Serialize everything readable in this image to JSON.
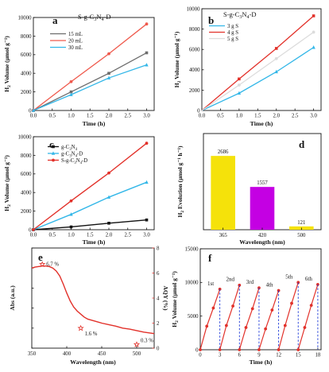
{
  "chart_data": [
    {
      "panel": "a",
      "type": "line",
      "title": "S-g-C3N4-D",
      "xlabel": "Time (h)",
      "ylabel": "H2 Volume (μmol g⁻¹)",
      "xlim": [
        0,
        3.2
      ],
      "ylim": [
        0,
        10000
      ],
      "xticks": [
        "0.0",
        "0.5",
        "1.0",
        "1.5",
        "2.0",
        "2.5",
        "3.0"
      ],
      "yticks": [
        "0",
        "2000",
        "4000",
        "6000",
        "8000",
        "10000"
      ],
      "legend_position": "top-left",
      "series": [
        {
          "name": "15 mL",
          "color": "#6d6d6d",
          "x": [
            0,
            1,
            2,
            3
          ],
          "y": [
            0,
            2000,
            4000,
            6200
          ]
        },
        {
          "name": "20 mL",
          "color": "#ef5a4d",
          "x": [
            0,
            1,
            2,
            3
          ],
          "y": [
            0,
            3100,
            6100,
            9300
          ]
        },
        {
          "name": "30 mL",
          "color": "#33b7e8",
          "x": [
            0,
            1,
            2,
            3
          ],
          "y": [
            0,
            1700,
            3500,
            4900
          ]
        }
      ]
    },
    {
      "panel": "b",
      "type": "line",
      "title": "S-g-C3N4-D",
      "xlabel": "Time (h)",
      "ylabel": "H2 Volume (μmol g⁻¹)",
      "xlim": [
        0,
        3.2
      ],
      "ylim": [
        0,
        10000
      ],
      "xticks": [
        "0.0",
        "0.5",
        "1.0",
        "1.5",
        "2.0",
        "2.5",
        "3.0"
      ],
      "yticks": [
        "0",
        "2000",
        "4000",
        "6000",
        "8000",
        "10000"
      ],
      "legend_position": "top-left",
      "series": [
        {
          "name": "3 g S",
          "color": "#33b7e8",
          "x": [
            0,
            1,
            2,
            3
          ],
          "y": [
            0,
            1700,
            3800,
            6200
          ]
        },
        {
          "name": "4 g S",
          "color": "#e2312a",
          "x": [
            0,
            1,
            2,
            3
          ],
          "y": [
            0,
            3100,
            6100,
            9300
          ]
        },
        {
          "name": "5 g S",
          "color": "#dcdcdc",
          "x": [
            0,
            1,
            2,
            3
          ],
          "y": [
            0,
            2500,
            5100,
            7700
          ]
        }
      ]
    },
    {
      "panel": "c",
      "type": "line",
      "xlabel": "Time (h)",
      "ylabel": "H2 Volume (μmol g⁻¹)",
      "xlim": [
        0,
        3.2
      ],
      "ylim": [
        0,
        10000
      ],
      "xticks": [
        "0.0",
        "0.5",
        "1.0",
        "1.5",
        "2.0",
        "2.5",
        "3.0"
      ],
      "yticks": [
        "0",
        "2000",
        "4000",
        "6000",
        "8000",
        "10000"
      ],
      "legend_position": "top-left",
      "series": [
        {
          "name": "g-C3N4",
          "color": "#111111",
          "x": [
            0,
            1,
            2,
            3
          ],
          "y": [
            0,
            300,
            700,
            1050
          ]
        },
        {
          "name": "g-C3N4-D",
          "color": "#33b7e8",
          "x": [
            0,
            1,
            2,
            3
          ],
          "y": [
            0,
            1650,
            3500,
            5100
          ]
        },
        {
          "name": "S-g-C3N4-D",
          "color": "#e2312a",
          "x": [
            0,
            1,
            2,
            3
          ],
          "y": [
            0,
            3100,
            6100,
            9300
          ]
        }
      ]
    },
    {
      "panel": "d",
      "type": "bar",
      "xlabel": "Wavelength (nm)",
      "ylabel": "H2 Evolution (μmol g⁻¹ h⁻¹)",
      "ylim": [
        0,
        3500
      ],
      "categories": [
        "365",
        "420",
        "500"
      ],
      "values": [
        2686,
        1557,
        121
      ],
      "data_labels": [
        "2686",
        "1557",
        "121"
      ],
      "colors": [
        "#f5e20a",
        "#c400e3",
        "#f5e20a"
      ]
    },
    {
      "panel": "e",
      "type": "line",
      "xlabel": "Wavelength (nm)",
      "ylabel": "Abs (a.u.)",
      "ylabel_right": "AQY (%)",
      "xlim": [
        350,
        525
      ],
      "ylim": [
        0,
        1.0
      ],
      "ylim_right": [
        0,
        8
      ],
      "xticks": [
        "350",
        "400",
        "450",
        "500"
      ],
      "yticks": [
        "0.0",
        "0.2",
        "0.4",
        "0.6",
        "0.8",
        "1.0"
      ],
      "yticks_right": [
        "0",
        "2",
        "4",
        "6",
        "8"
      ],
      "series": [
        {
          "name": "Abs",
          "color": "#e2312a",
          "x": [
            350,
            355,
            360,
            365,
            370,
            375,
            380,
            385,
            390,
            395,
            400,
            405,
            410,
            415,
            420,
            425,
            430,
            440,
            450,
            460,
            470,
            480,
            490,
            500,
            510,
            520,
            525
          ],
          "y": [
            0.8,
            0.81,
            0.815,
            0.82,
            0.82,
            0.815,
            0.8,
            0.77,
            0.72,
            0.64,
            0.55,
            0.47,
            0.41,
            0.37,
            0.34,
            0.31,
            0.29,
            0.27,
            0.25,
            0.235,
            0.22,
            0.2,
            0.19,
            0.175,
            0.16,
            0.15,
            0.145
          ]
        }
      ],
      "points_right": [
        {
          "x": 365,
          "y": 6.7,
          "label": "6.7 %"
        },
        {
          "x": 420,
          "y": 1.6,
          "label": "1.6 %"
        },
        {
          "x": 500,
          "y": 0.3,
          "label": "0.3 %"
        }
      ]
    },
    {
      "panel": "f",
      "type": "line",
      "xlabel": "Time (h)",
      "ylabel": "H2 Volume (μmol g⁻¹)",
      "xlim": [
        0,
        18.5
      ],
      "ylim": [
        0,
        15000
      ],
      "xticks": [
        "0",
        "3",
        "6",
        "9",
        "12",
        "15",
        "18"
      ],
      "yticks": [
        "0",
        "5000",
        "10000",
        "15000"
      ],
      "cycle_labels": [
        "1st",
        "2nd",
        "3rd",
        "4th",
        "5th",
        "6th"
      ],
      "cycles": [
        {
          "x0": 0,
          "y": [
            0,
            3500,
            6200,
            9000
          ]
        },
        {
          "x0": 3,
          "y": [
            0,
            3600,
            6500,
            9600
          ]
        },
        {
          "x0": 6,
          "y": [
            0,
            3300,
            6100,
            9200
          ]
        },
        {
          "x0": 9,
          "y": [
            0,
            3100,
            5900,
            8800
          ]
        },
        {
          "x0": 12,
          "y": [
            0,
            3600,
            6900,
            10000
          ]
        },
        {
          "x0": 15,
          "y": [
            0,
            3300,
            6600,
            9700
          ]
        }
      ],
      "line_color": "#e2312a",
      "divider_color": "#1f3bd8"
    }
  ]
}
